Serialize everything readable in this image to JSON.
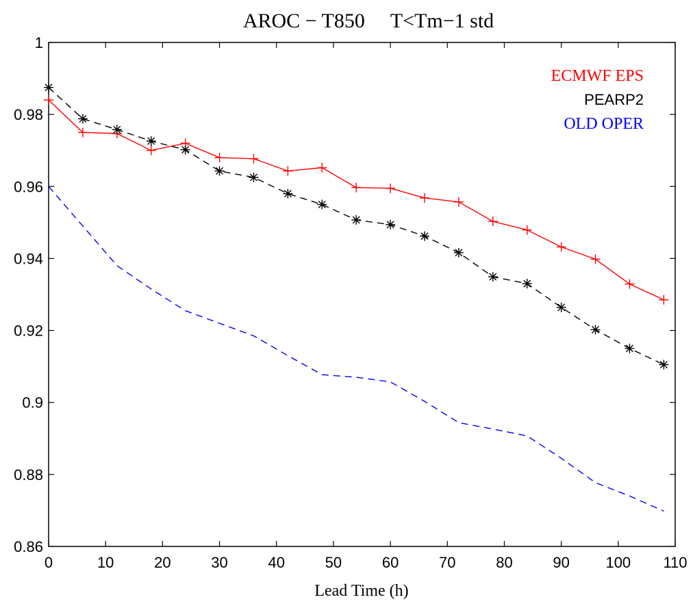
{
  "chart_data": {
    "type": "line",
    "title": "AROC − T850     T<Tm−1 std",
    "xlabel": "Lead Time (h)",
    "ylabel": "",
    "xlim": [
      0,
      110
    ],
    "ylim": [
      0.86,
      1.0
    ],
    "x_ticks": [
      0,
      10,
      20,
      30,
      40,
      50,
      60,
      70,
      80,
      90,
      100,
      110
    ],
    "y_ticks": [
      0.86,
      0.88,
      0.9,
      0.92,
      0.94,
      0.96,
      0.98,
      1
    ],
    "y_tick_labels": [
      "0.86",
      "0.88",
      "0.9",
      "0.92",
      "0.94",
      "0.96",
      "0.98",
      "1"
    ],
    "grid": false,
    "legend_position": "top-right",
    "x": [
      0,
      6,
      12,
      18,
      24,
      30,
      36,
      42,
      48,
      54,
      60,
      66,
      72,
      78,
      84,
      90,
      96,
      102,
      108
    ],
    "series": [
      {
        "name": "ECMWF EPS",
        "color": "#ff0000",
        "line_style": "solid",
        "marker": "plus",
        "values": [
          0.984,
          0.975,
          0.9747,
          0.97,
          0.972,
          0.968,
          0.9677,
          0.9643,
          0.9652,
          0.9597,
          0.9595,
          0.9568,
          0.9557,
          0.9503,
          0.9479,
          0.9432,
          0.9398,
          0.9329,
          0.9285
        ]
      },
      {
        "name": "PEARP2",
        "color": "#000000",
        "line_style": "dashed",
        "marker": "asterisk",
        "values": [
          0.9875,
          0.9788,
          0.9758,
          0.9726,
          0.9702,
          0.9643,
          0.9625,
          0.958,
          0.955,
          0.9507,
          0.9494,
          0.9462,
          0.9416,
          0.9349,
          0.933,
          0.9264,
          0.9202,
          0.915,
          0.9105
        ]
      },
      {
        "name": "OLD OPER",
        "color": "#0000ff",
        "line_style": "dashed",
        "marker": "none",
        "values": [
          0.96,
          0.949,
          0.938,
          0.9315,
          0.9255,
          0.922,
          0.9185,
          0.913,
          0.9077,
          0.907,
          0.9057,
          0.9003,
          0.8944,
          0.8926,
          0.8907,
          0.8845,
          0.8777,
          0.874,
          0.8698
        ]
      }
    ]
  }
}
